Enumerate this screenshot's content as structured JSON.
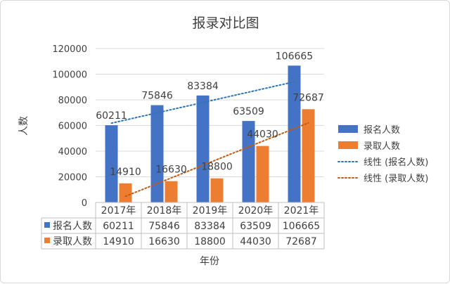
{
  "chart_data": {
    "type": "bar",
    "title": "报录对比图",
    "xlabel": "年份",
    "ylabel": "人数",
    "categories": [
      "2017年",
      "2018年",
      "2019年",
      "2020年",
      "2021年"
    ],
    "ylim": [
      0,
      120000
    ],
    "yticks": [
      "0",
      "20000",
      "40000",
      "60000",
      "80000",
      "100000",
      "120000"
    ],
    "series": [
      {
        "name": "报名人数",
        "values": [
          60211,
          75846,
          83384,
          63509,
          106665
        ],
        "color": "#4472c4"
      },
      {
        "name": "录取人数",
        "values": [
          14910,
          16630,
          18800,
          44030,
          72687
        ],
        "color": "#ed7d31"
      }
    ],
    "trendlines": [
      {
        "name": "线性 (报名人数)",
        "color": "#2e75b6"
      },
      {
        "name": "线性 (录取人数)",
        "color": "#c55a11"
      }
    ],
    "grid": true,
    "legend": "right",
    "data_table": true
  }
}
